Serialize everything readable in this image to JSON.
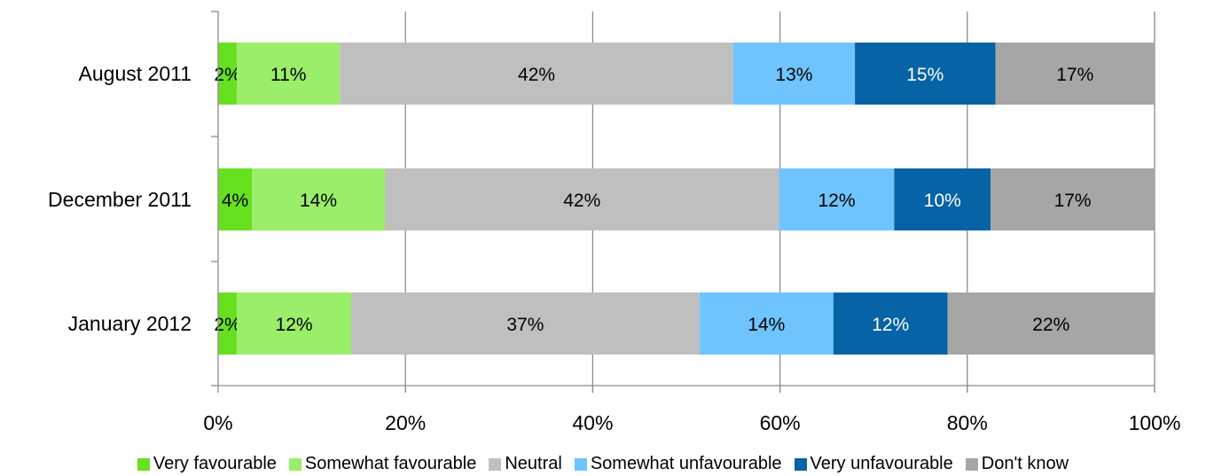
{
  "chart_data": {
    "type": "bar",
    "orientation": "horizontal",
    "stacked": true,
    "title": "",
    "xlabel": "",
    "ylabel": "",
    "xlim": [
      0,
      100
    ],
    "x_ticks": [
      "0%",
      "20%",
      "40%",
      "60%",
      "80%",
      "100%"
    ],
    "x_tick_values": [
      0,
      20,
      40,
      60,
      80,
      100
    ],
    "grid": "vertical",
    "legend_position": "bottom",
    "categories": [
      "August 2011",
      "December 2011",
      "January 2012"
    ],
    "series": [
      {
        "name": "Very favourable",
        "color": "#66e01f",
        "label_color": "#000000",
        "values": [
          2,
          3.6,
          2
        ],
        "labels": [
          "2%",
          "4%",
          "2%"
        ]
      },
      {
        "name": "Somewhat favourable",
        "color": "#9aee6a",
        "label_color": "#000000",
        "values": [
          11,
          14.2,
          12.2
        ],
        "labels": [
          "11%",
          "14%",
          "12%"
        ]
      },
      {
        "name": "Neutral",
        "color": "#bfbfbf",
        "label_color": "#000000",
        "values": [
          42,
          42.1,
          37.2
        ],
        "labels": [
          "42%",
          "42%",
          "37%"
        ]
      },
      {
        "name": "Somewhat unfavourable",
        "color": "#70c4fe",
        "label_color": "#000000",
        "values": [
          13,
          12.3,
          14.3
        ],
        "labels": [
          "13%",
          "12%",
          "14%"
        ]
      },
      {
        "name": "Very unfavourable",
        "color": "#0563a6",
        "label_color": "#ffffff",
        "values": [
          15,
          10.3,
          12.2
        ],
        "labels": [
          "15%",
          "10%",
          "12%"
        ]
      },
      {
        "name": "Don't know",
        "color": "#a6a6a6",
        "label_color": "#000000",
        "values": [
          17,
          17.5,
          22.1
        ],
        "labels": [
          "17%",
          "17%",
          "22%"
        ]
      }
    ]
  }
}
